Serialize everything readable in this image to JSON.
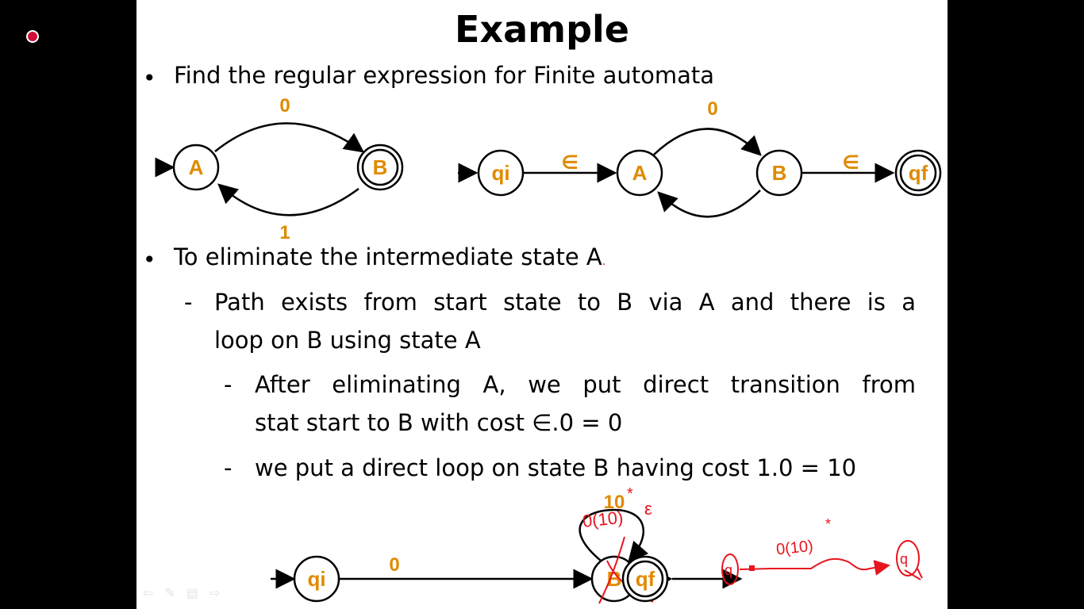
{
  "slide": {
    "title": "Example",
    "bullets": [
      {
        "marker": "•",
        "text": "Find the regular expression for Finite automata"
      },
      {
        "marker": "•",
        "text": "To eliminate  the intermediate state A"
      }
    ],
    "trailing_dot": ".",
    "sub1": {
      "marker": "-",
      "line1": "Path exists from start state to B via A and there is a",
      "line2": "loop on B using state A"
    },
    "sub2": {
      "marker": "-",
      "line1": "After eliminating A, we put direct transition from",
      "line2": "stat start to B with cost ∈.0 = 0"
    },
    "sub3": {
      "marker": "-",
      "text": "we put a direct loop on state B having cost 1.0 = 10"
    }
  },
  "diagram1": {
    "states": [
      "A",
      "B"
    ],
    "top_label": "0",
    "bottom_label": "1"
  },
  "diagram2": {
    "states": [
      "qi",
      "A",
      "B",
      "qf"
    ],
    "labels": [
      "∈",
      "0",
      "∈"
    ]
  },
  "diagram3": {
    "states": [
      "qi",
      "B",
      "qf"
    ],
    "loop_label": "10",
    "labels": [
      "0",
      "∈"
    ]
  },
  "handwriting": {
    "expr1": "0(10)",
    "star1": "*",
    "eps1": "ε",
    "expr2": "0(10)",
    "star2": "*",
    "start": "q",
    "end": "q"
  },
  "nav_icons": [
    "prev-arrow-icon",
    "pen-icon",
    "menu-icon",
    "next-arrow-icon"
  ],
  "colors": {
    "accent": "#e08a00",
    "ink": "#e8141e",
    "laser": "#d0103a"
  }
}
